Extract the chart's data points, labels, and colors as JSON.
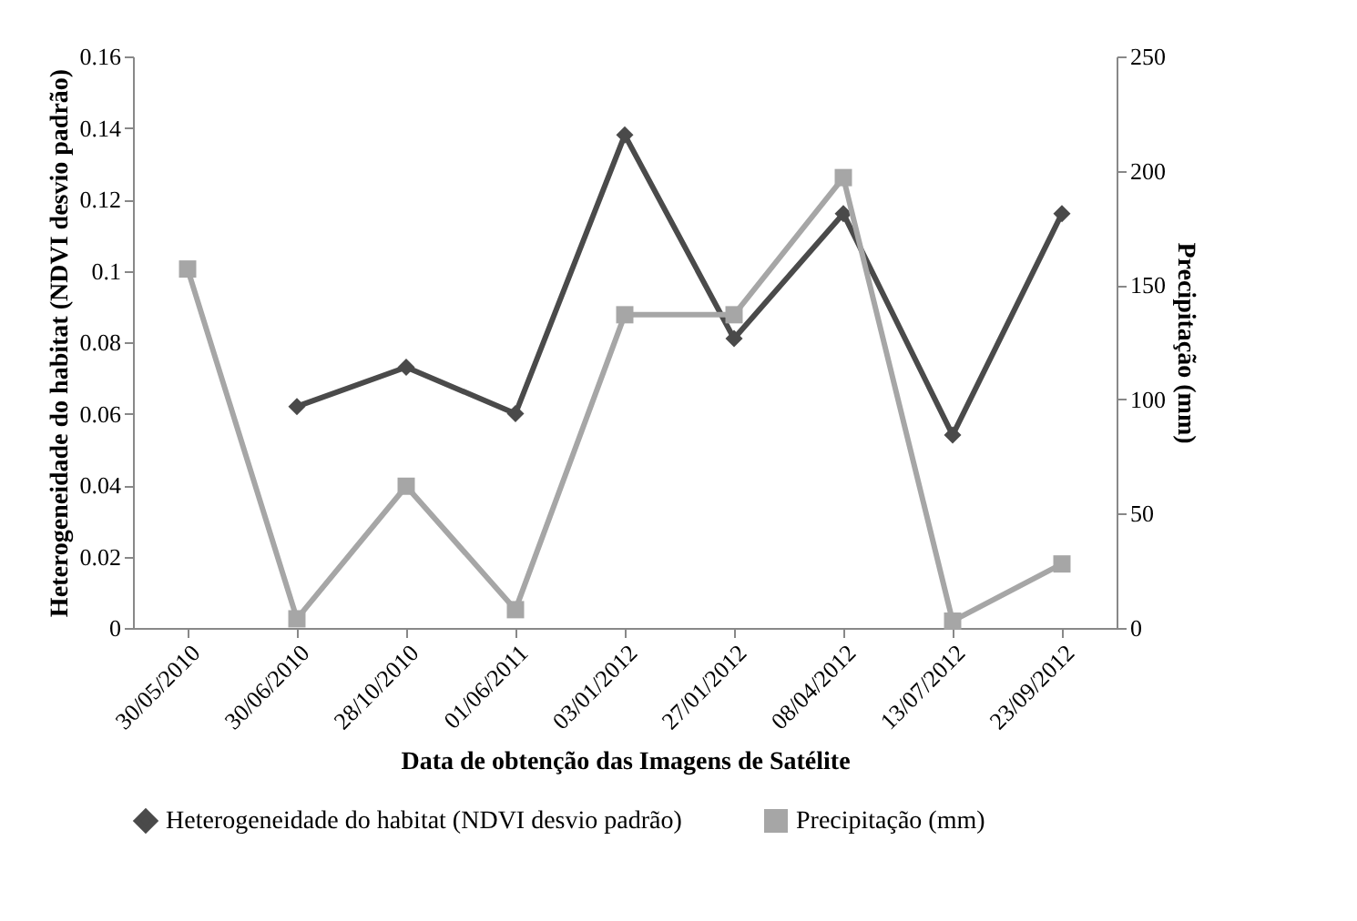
{
  "chart_data": {
    "type": "line",
    "xlabel": "Data de obtenção das Imagens de Satélite",
    "ylabel": "Heterogeneidade do habitat (NDVI desvio padrão)",
    "y2label": "Precipitação (mm)",
    "categories": [
      "30/05/2010",
      "30/06/2010",
      "28/10/2010",
      "01/06/2011",
      "03/01/2012",
      "27/01/2012",
      "08/04/2012",
      "13/07/2012",
      "23/09/2012"
    ],
    "series": [
      {
        "name": "Heterogeneidade do habitat (NDVI desvio padrão)",
        "color": "#4a4a4a",
        "marker": "diamond",
        "values": [
          null,
          0.062,
          0.073,
          0.06,
          0.138,
          0.081,
          0.116,
          0.054,
          0.116
        ]
      },
      {
        "name": "Precipitação (mm)",
        "color": "#a6a6a6",
        "marker": "square",
        "axis": "y2",
        "values": [
          157,
          4,
          62,
          8,
          137,
          137,
          197,
          3,
          28
        ]
      }
    ],
    "ylim": [
      0,
      0.16
    ],
    "yticks": [
      0,
      0.02,
      0.04,
      0.06,
      0.08,
      0.1,
      0.12,
      0.14,
      0.16
    ],
    "y2lim": [
      0,
      250
    ],
    "y2ticks": [
      0,
      50,
      100,
      150,
      200,
      250
    ],
    "grid": false,
    "legend": "bottom",
    "line_style": "solid"
  }
}
